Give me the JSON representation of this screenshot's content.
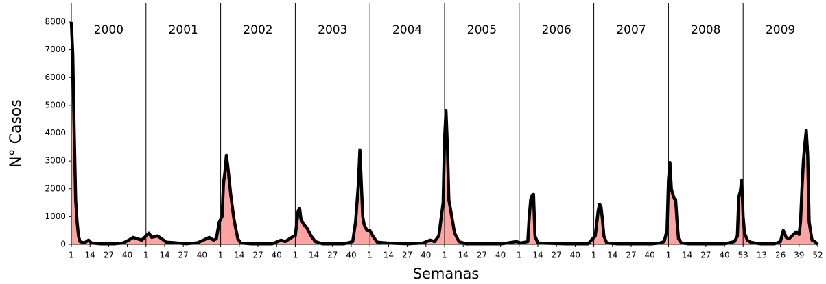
{
  "chart_data": {
    "type": "area",
    "x_label": "Semanas",
    "y_label": "N° Casos",
    "color": "#ffa3a3",
    "line_color": "#000000",
    "xlim": [
      0,
      520
    ],
    "ylim": [
      0,
      8000
    ],
    "yticks": [
      0,
      1000,
      2000,
      3000,
      4000,
      5000,
      6000,
      7000,
      8000
    ],
    "xticks": [
      {
        "value": 0,
        "label": "1"
      },
      {
        "value": 13,
        "label": "14"
      },
      {
        "value": 26,
        "label": "27"
      },
      {
        "value": 39,
        "label": "40"
      },
      {
        "value": 52,
        "label": "1"
      },
      {
        "value": 65,
        "label": "14"
      },
      {
        "value": 78,
        "label": "27"
      },
      {
        "value": 91,
        "label": "40"
      },
      {
        "value": 104,
        "label": "1"
      },
      {
        "value": 117,
        "label": "14"
      },
      {
        "value": 130,
        "label": "27"
      },
      {
        "value": 143,
        "label": "40"
      },
      {
        "value": 156,
        "label": "1"
      },
      {
        "value": 169,
        "label": "14"
      },
      {
        "value": 182,
        "label": "27"
      },
      {
        "value": 195,
        "label": "40"
      },
      {
        "value": 208,
        "label": "1"
      },
      {
        "value": 221,
        "label": "14"
      },
      {
        "value": 234,
        "label": "27"
      },
      {
        "value": 247,
        "label": "40"
      },
      {
        "value": 260,
        "label": "1"
      },
      {
        "value": 273,
        "label": "14"
      },
      {
        "value": 286,
        "label": "27"
      },
      {
        "value": 299,
        "label": "40"
      },
      {
        "value": 312,
        "label": "1"
      },
      {
        "value": 325,
        "label": "14"
      },
      {
        "value": 338,
        "label": "27"
      },
      {
        "value": 351,
        "label": "40"
      },
      {
        "value": 364,
        "label": "1"
      },
      {
        "value": 377,
        "label": "14"
      },
      {
        "value": 390,
        "label": "27"
      },
      {
        "value": 403,
        "label": "40"
      },
      {
        "value": 416,
        "label": "1"
      },
      {
        "value": 429,
        "label": "14"
      },
      {
        "value": 442,
        "label": "27"
      },
      {
        "value": 455,
        "label": "40"
      },
      {
        "value": 468,
        "label": "53"
      },
      {
        "value": 481,
        "label": "13"
      },
      {
        "value": 494,
        "label": "26"
      },
      {
        "value": 507,
        "label": "39"
      },
      {
        "value": 520,
        "label": "52"
      }
    ],
    "years": [
      "2000",
      "2001",
      "2002",
      "2003",
      "2004",
      "2005",
      "2006",
      "2007",
      "2008",
      "2009"
    ],
    "year_bounds": [
      0,
      52,
      104,
      156,
      208,
      260,
      312,
      364,
      416,
      468,
      520
    ],
    "x": [
      0,
      1,
      2,
      3,
      4,
      5,
      6,
      9,
      12,
      14,
      20,
      30,
      36,
      40,
      43,
      46,
      49,
      52,
      54,
      56,
      60,
      63,
      66,
      72,
      80,
      88,
      92,
      96,
      99,
      101,
      103,
      105,
      106,
      107,
      108,
      109,
      111,
      113,
      114,
      116,
      118,
      125,
      140,
      146,
      149,
      152,
      155,
      156,
      158,
      159,
      160,
      162,
      164,
      167,
      170,
      175,
      190,
      196,
      198,
      200,
      201,
      202,
      203,
      204,
      206,
      208,
      210,
      213,
      220,
      235,
      245,
      250,
      253,
      256,
      259,
      260,
      261,
      262,
      263,
      265,
      267,
      270,
      275,
      300,
      310,
      313,
      318,
      319,
      320,
      321,
      322,
      323,
      325,
      345,
      360,
      365,
      367,
      368,
      369,
      370,
      371,
      373,
      380,
      405,
      410,
      413,
      415,
      416,
      417,
      418,
      419,
      420,
      421,
      422,
      423,
      425,
      430,
      455,
      462,
      464,
      465,
      466,
      467,
      468,
      469,
      471,
      473,
      476,
      480,
      490,
      494,
      496,
      498,
      500,
      502,
      505,
      507,
      508,
      509,
      510,
      511,
      512,
      513,
      514,
      516,
      518,
      520
    ],
    "values": [
      8000,
      6800,
      4000,
      1600,
      800,
      300,
      100,
      50,
      150,
      50,
      20,
      20,
      50,
      150,
      250,
      200,
      150,
      300,
      400,
      250,
      300,
      200,
      80,
      60,
      20,
      60,
      150,
      250,
      150,
      200,
      800,
      1000,
      2200,
      2600,
      3200,
      2800,
      1800,
      1000,
      700,
      200,
      50,
      20,
      20,
      150,
      100,
      200,
      300,
      300,
      1200,
      1300,
      900,
      700,
      600,
      300,
      100,
      20,
      20,
      100,
      800,
      2200,
      3400,
      2200,
      1000,
      700,
      500,
      500,
      300,
      80,
      50,
      20,
      50,
      150,
      100,
      300,
      1500,
      3800,
      4800,
      3500,
      1600,
      1000,
      400,
      100,
      20,
      20,
      100,
      50,
      100,
      1000,
      1600,
      1750,
      1800,
      300,
      50,
      20,
      20,
      300,
      1200,
      1450,
      1350,
      900,
      300,
      50,
      20,
      20,
      50,
      100,
      500,
      2300,
      2950,
      2000,
      1800,
      1650,
      1600,
      800,
      200,
      50,
      20,
      20,
      100,
      300,
      1700,
      1900,
      2300,
      1000,
      400,
      150,
      80,
      50,
      20,
      20,
      100,
      500,
      250,
      200,
      300,
      450,
      350,
      800,
      2000,
      3000,
      3600,
      4100,
      3200,
      800,
      150,
      100,
      0
    ]
  }
}
